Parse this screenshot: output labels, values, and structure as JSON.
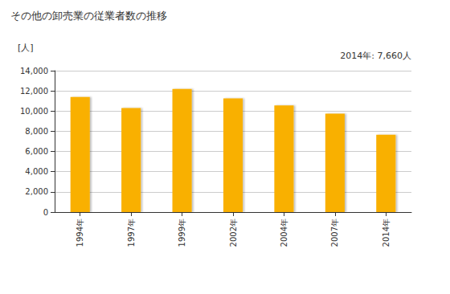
{
  "chart_data": {
    "type": "bar",
    "title": "その他の卸売業の従業者数の推移",
    "y_label": "[人]",
    "annotation": "2014年: 7,660人",
    "categories": [
      "1994年",
      "1997年",
      "1999年",
      "2002年",
      "2004年",
      "2007年",
      "2014年"
    ],
    "values": [
      11400,
      10300,
      12200,
      11250,
      10550,
      9750,
      7660
    ],
    "color": "#f9b000",
    "ylim": [
      0,
      14000
    ],
    "yticks": [
      0,
      {
        "value": 2000,
        "label": "2,000"
      },
      {
        "value": 4000,
        "label": "4,000"
      },
      {
        "value": 6000,
        "label": "6,000"
      },
      {
        "value": 8000,
        "label": "8,000"
      },
      {
        "value": 10000,
        "label": "10,000"
      },
      {
        "value": 12000,
        "label": "12,000"
      },
      {
        "value": 14000,
        "label": "14,000"
      }
    ],
    "grid": true
  }
}
